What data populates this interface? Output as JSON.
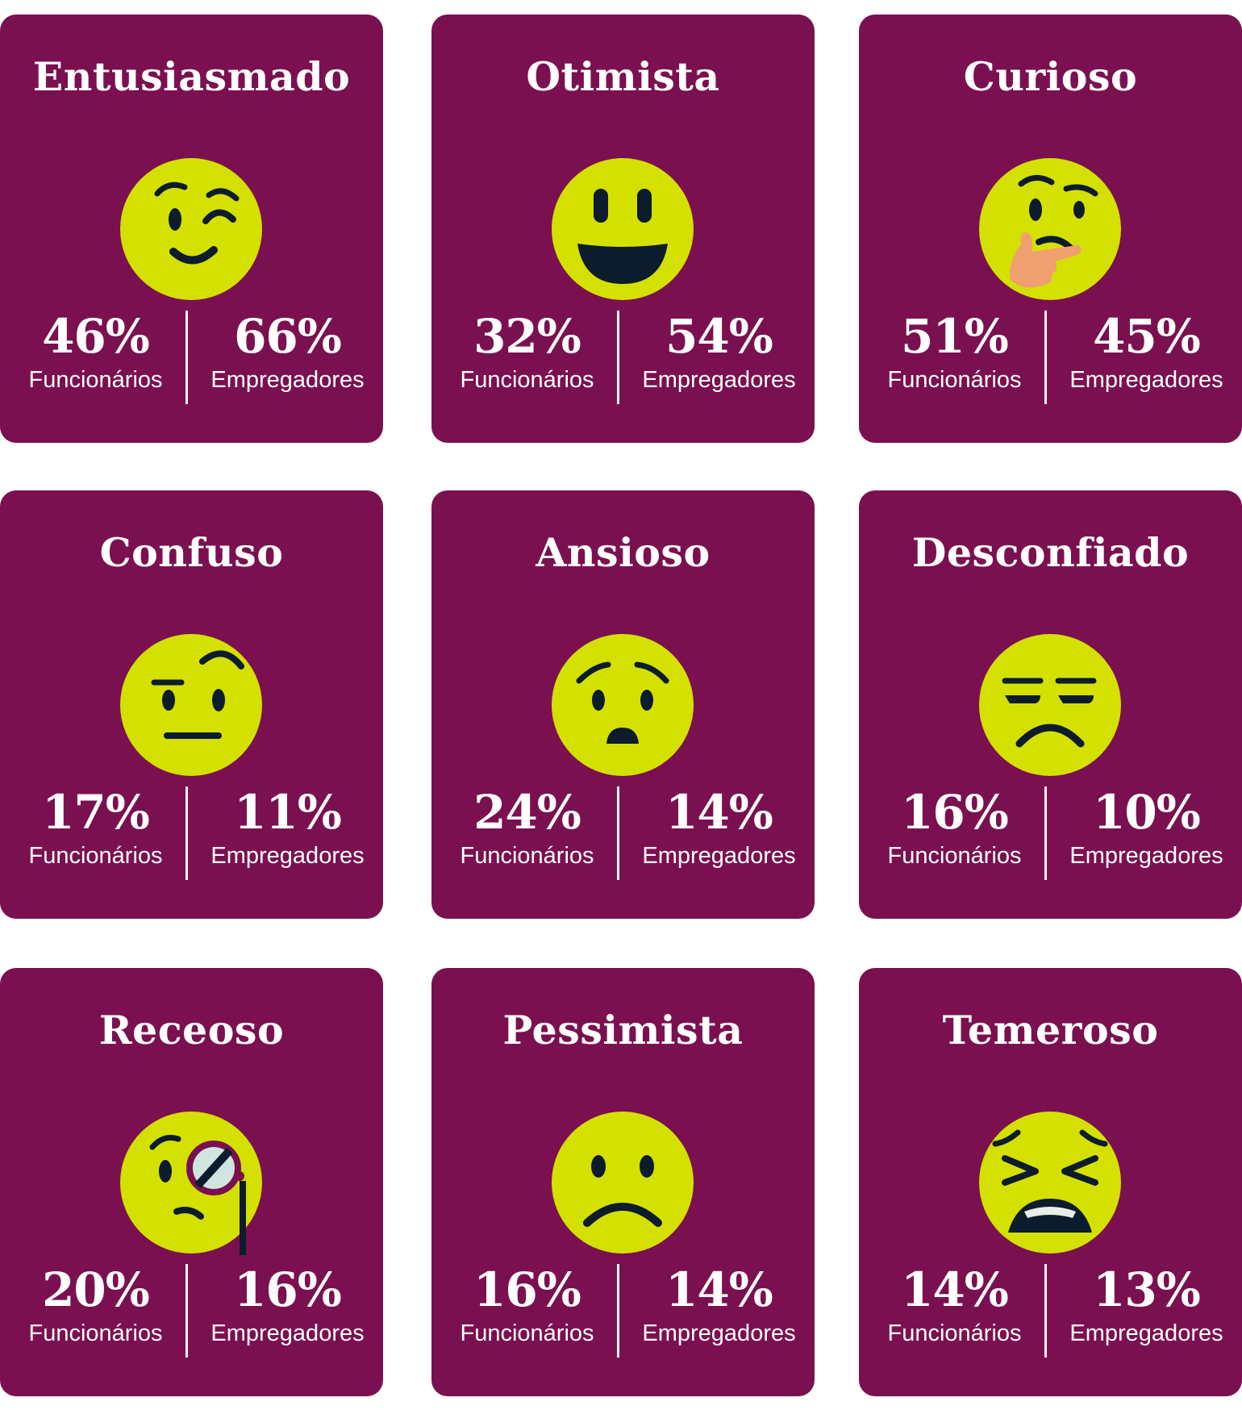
{
  "colors": {
    "card_bg": "#7b1050",
    "emoji_face": "#d4e000",
    "emoji_features": "#0c1c2c",
    "hand": "#f0a070",
    "text": "#ffffff"
  },
  "cards": [
    {
      "title": "Entusiasmado",
      "icon": "winking-face-icon",
      "employees_pct": "46%",
      "employers_pct": "66%",
      "employees_label": "Funcionários",
      "employers_label": "Empregadores"
    },
    {
      "title": "Otimista",
      "icon": "grinning-face-icon",
      "employees_pct": "32%",
      "employers_pct": "54%",
      "employees_label": "Funcionários",
      "employers_label": "Empregadores"
    },
    {
      "title": "Curioso",
      "icon": "thinking-face-icon",
      "employees_pct": "51%",
      "employers_pct": "45%",
      "employees_label": "Funcionários",
      "employers_label": "Empregadores"
    },
    {
      "title": "Confuso",
      "icon": "raised-eyebrow-face-icon",
      "employees_pct": "17%",
      "employers_pct": "11%",
      "employees_label": "Funcionários",
      "employers_label": "Empregadores"
    },
    {
      "title": "Ansioso",
      "icon": "worried-face-icon",
      "employees_pct": "24%",
      "employers_pct": "14%",
      "employees_label": "Funcionários",
      "employers_label": "Empregadores"
    },
    {
      "title": "Desconfiado",
      "icon": "unamused-face-icon",
      "employees_pct": "16%",
      "employers_pct": "10%",
      "employees_label": "Funcionários",
      "employers_label": "Empregadores"
    },
    {
      "title": "Receoso",
      "icon": "face-with-monocle-icon",
      "employees_pct": "20%",
      "employers_pct": "16%",
      "employees_label": "Funcionários",
      "employers_label": "Empregadores"
    },
    {
      "title": "Pessimista",
      "icon": "frowning-face-icon",
      "employees_pct": "16%",
      "employers_pct": "14%",
      "employees_label": "Funcionários",
      "employers_label": "Empregadores"
    },
    {
      "title": "Temeroso",
      "icon": "tired-face-icon",
      "employees_pct": "14%",
      "employers_pct": "13%",
      "employees_label": "Funcionários",
      "employers_label": "Empregadores"
    }
  ]
}
